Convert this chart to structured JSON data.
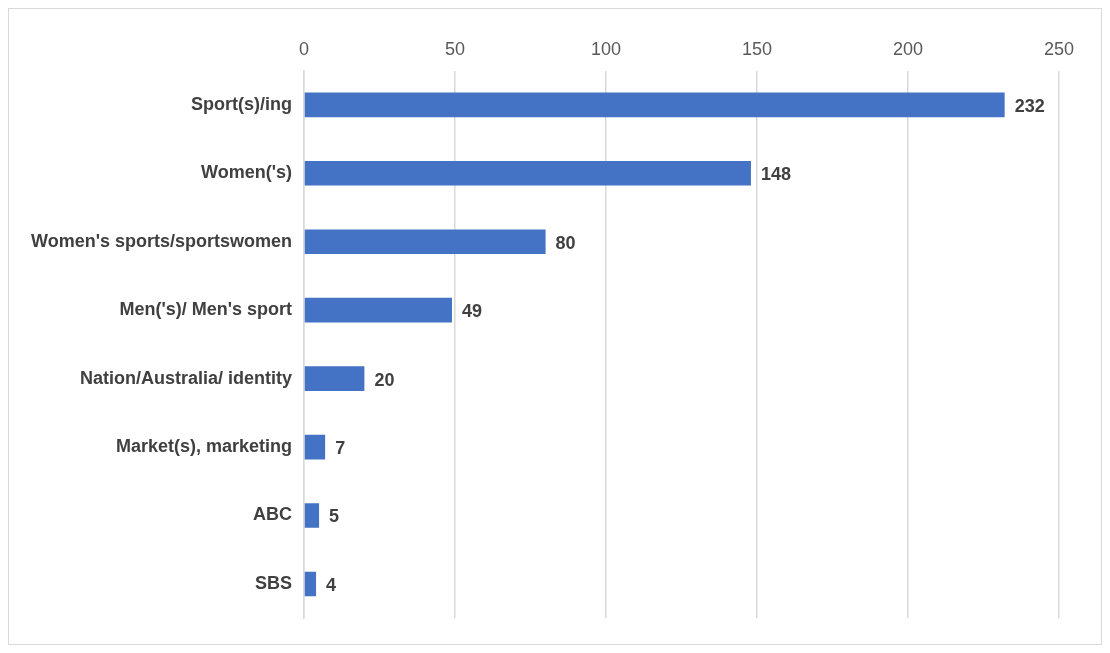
{
  "chart_data": {
    "type": "bar",
    "orientation": "horizontal",
    "categories": [
      "Sport(s)/ing",
      "Women('s)",
      "Women's sports/sportswomen",
      "Men('s)/ Men's sport",
      "Nation/Australia/ identity",
      "Market(s), marketing",
      "ABC",
      "SBS"
    ],
    "values": [
      232,
      148,
      80,
      49,
      20,
      7,
      5,
      4
    ],
    "color": "#4472c4",
    "xlim": [
      0,
      250
    ],
    "xticks": [
      0,
      50,
      100,
      150,
      200,
      250
    ],
    "grid": "x",
    "data_labels": true,
    "legend": false
  }
}
